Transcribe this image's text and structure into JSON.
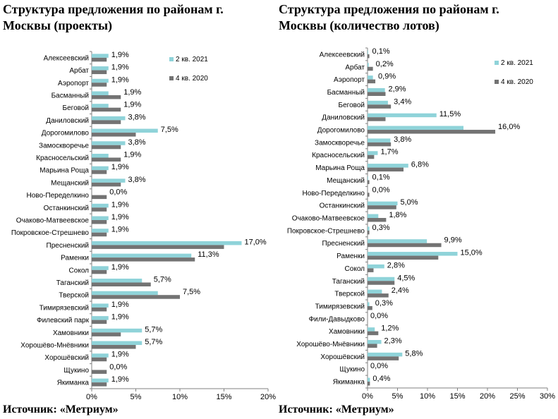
{
  "source": "Источник: «Метриум»",
  "chart_data": [
    {
      "type": "bar",
      "orientation": "horizontal",
      "title": "Структура  предложения по районам г. Москвы (проекты)",
      "categories": [
        "Алексеевский",
        "Арбат",
        "Аэропорт",
        "Басманный",
        "Беговой",
        "Даниловский",
        "Дорогомилово",
        "Замоскворечье",
        "Красносельский",
        "Марьина Роща",
        "Мещанский",
        "Ново-Переделкино",
        "Останкинский",
        "Очаково-Матвеевское",
        "Покровское-Стрешнево",
        "Пресненский",
        "Раменки",
        "Сокол",
        "Таганский",
        "Тверской",
        "Тимирязевский",
        "Филевский парк",
        "Хамовники",
        "Хорошёво-Мнёвники",
        "Хорошёвский",
        "Щукино",
        "Якиманка"
      ],
      "series": [
        {
          "name": "2 кв. 2021",
          "color": "#8fd3d9",
          "values": [
            1.9,
            1.9,
            1.9,
            1.9,
            1.9,
            3.8,
            7.5,
            3.8,
            1.9,
            1.9,
            3.8,
            0.0,
            1.9,
            1.9,
            1.9,
            17.0,
            11.3,
            1.9,
            5.7,
            7.5,
            1.9,
            1.9,
            5.7,
            5.7,
            1.9,
            0.0,
            1.9
          ]
        },
        {
          "name": "4 кв. 2020",
          "color": "#737373",
          "values": [
            1.7,
            1.7,
            1.7,
            3.3,
            3.3,
            3.3,
            5.0,
            3.3,
            3.3,
            1.7,
            3.3,
            1.7,
            1.7,
            1.7,
            1.7,
            15.0,
            11.7,
            1.7,
            6.7,
            10.0,
            1.7,
            1.7,
            3.3,
            5.0,
            1.7,
            1.7,
            1.7
          ]
        }
      ],
      "value_labels": [
        "1,9%",
        "1,9%",
        "1,9%",
        "1,9%",
        "1,9%",
        "3,8%",
        "7,5%",
        "3,8%",
        "1,9%",
        "1,9%",
        "3,8%",
        "0,0%",
        "1,9%",
        "1,9%",
        "1,9%",
        "17,0%",
        "11,3%",
        "1,9%",
        "5,7%",
        "7,5%",
        "1,9%",
        "1,9%",
        "5,7%",
        "5,7%",
        "1,9%",
        "0,0%",
        "1,9%"
      ],
      "xlim": [
        0,
        20
      ],
      "ticks": [
        0,
        5,
        10,
        15,
        20
      ],
      "tick_labels": [
        "0%",
        "5%",
        "10%",
        "15%",
        "20%"
      ],
      "legend": "top-right",
      "grid": false
    },
    {
      "type": "bar",
      "orientation": "horizontal",
      "title": "Структура  предложения по районам г. Москвы (количество лотов)",
      "categories": [
        "Алексеевский",
        "Арбат",
        "Аэропорт",
        "Басманный",
        "Беговой",
        "Даниловский",
        "Дорогомилово",
        "Замоскворечье",
        "Красносельский",
        "Марьина Роща",
        "Мещанский",
        "Ново-Переделкино",
        "Останкинский",
        "Очаково-Матвеевское",
        "Покровское-Стрешнево",
        "Пресненский",
        "Раменки",
        "Сокол",
        "Таганский",
        "Тверской",
        "Тимирязевский",
        "Фили-Давыдково",
        "Хамовники",
        "Хорошёво-Мнёвники",
        "Хорошёвский",
        "Щукино",
        "Якиманка"
      ],
      "series": [
        {
          "name": "2 кв. 2021",
          "color": "#8fd3d9",
          "values": [
            0.1,
            0.2,
            0.9,
            2.9,
            3.4,
            11.5,
            16.0,
            3.8,
            1.7,
            6.8,
            0.1,
            0.0,
            5.0,
            1.8,
            0.3,
            9.9,
            15.0,
            2.8,
            4.5,
            2.4,
            0.3,
            0.0,
            1.2,
            2.3,
            5.8,
            0.0,
            0.4
          ]
        },
        {
          "name": "4 кв. 2020",
          "color": "#737373",
          "values": [
            0.3,
            0.9,
            1.3,
            3.0,
            3.9,
            3.0,
            21.3,
            3.9,
            1.1,
            6.0,
            0.3,
            0.3,
            4.8,
            3.1,
            0.3,
            12.3,
            11.8,
            1.0,
            4.5,
            3.5,
            0.8,
            0.0,
            1.8,
            1.6,
            5.2,
            0.0,
            0.4
          ]
        }
      ],
      "value_labels": [
        "0,1%",
        "0,2%",
        "0,9%",
        "2,9%",
        "3,4%",
        "11,5%",
        "16,0%",
        "3,8%",
        "1,7%",
        "6,8%",
        "0,1%",
        "0,0%",
        "5,0%",
        "1,8%",
        "0,3%",
        "9,9%",
        "15,0%",
        "2,8%",
        "4,5%",
        "2,4%",
        "0,3%",
        "0,0%",
        "1,2%",
        "2,3%",
        "5,8%",
        "0,0%",
        "0,4%"
      ],
      "xlim": [
        0,
        30
      ],
      "ticks": [
        0,
        5,
        10,
        15,
        20,
        25,
        30
      ],
      "tick_labels": [
        "0%",
        "5%",
        "10%",
        "15%",
        "20%",
        "25%",
        "30%"
      ],
      "legend": "top-right",
      "grid": false
    }
  ]
}
